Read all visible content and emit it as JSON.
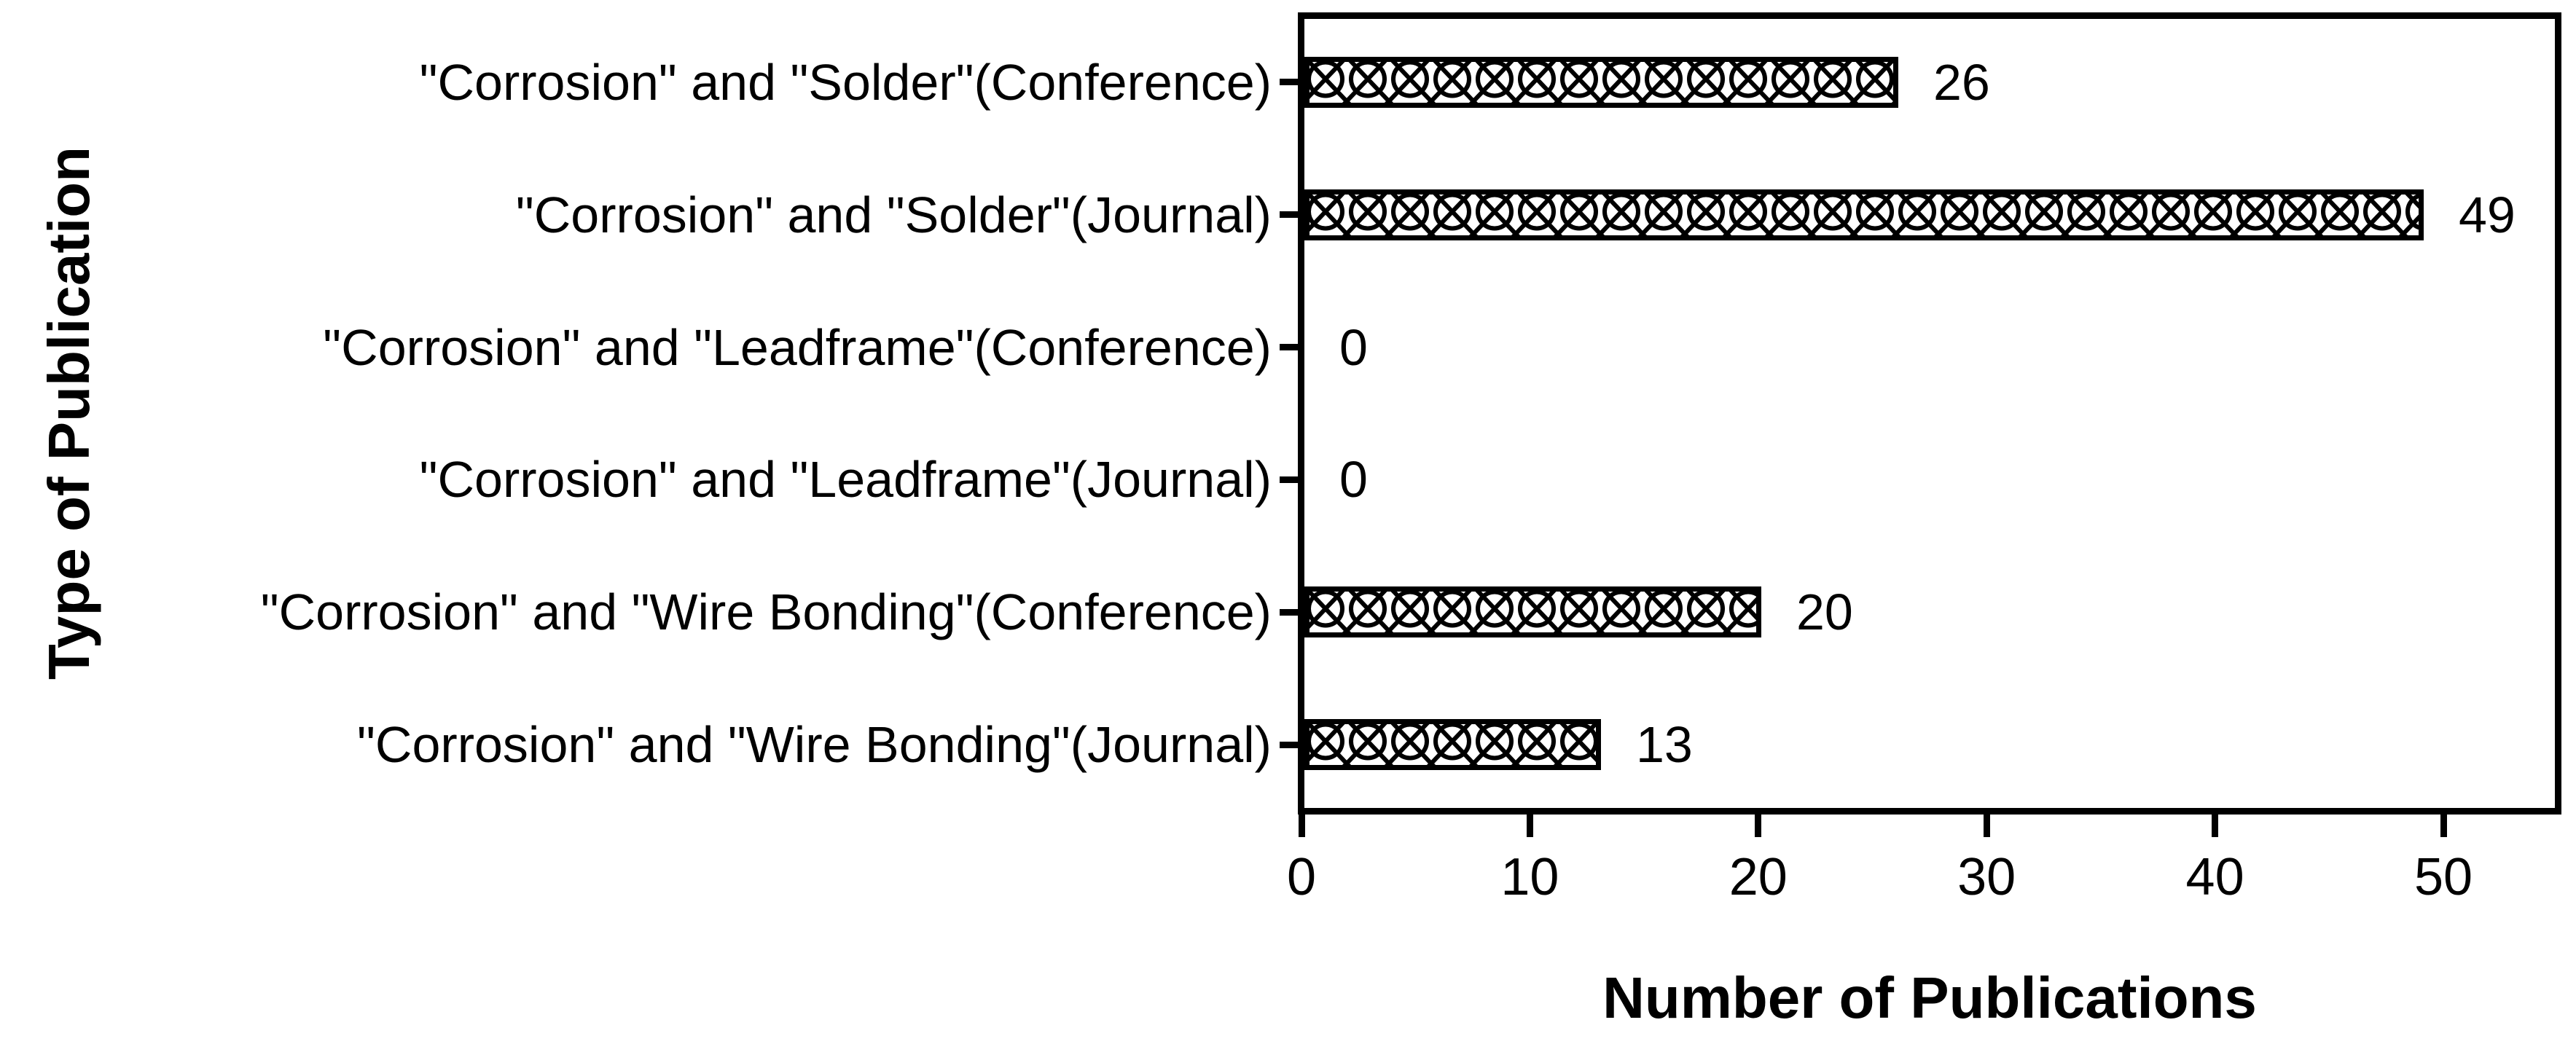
{
  "figure": {
    "background_color": "#ffffff",
    "ink_color": "#000000"
  },
  "chart_data": {
    "type": "bar",
    "orientation": "horizontal",
    "title": "",
    "xlabel": "Number of Publications",
    "ylabel": "Type of Publication",
    "categories": [
      "\"Corrosion\" and \"Solder\"(Conference)",
      "\"Corrosion\" and \"Solder\"(Journal)",
      "\"Corrosion\" and \"Leadframe\"(Conference)",
      "\"Corrosion\" and \"Leadframe\"(Journal)",
      "\"Corrosion\" and \"Wire Bonding\"(Conference)",
      "\"Corrosion\" and \"Wire Bonding\"(Journal)"
    ],
    "values": [
      26,
      49,
      0,
      0,
      20,
      13
    ],
    "value_labels": [
      "26",
      "49",
      "0",
      "0",
      "20",
      "13"
    ],
    "xticks": [
      "0",
      "10",
      "20",
      "30",
      "40",
      "50"
    ],
    "xtick_values": [
      0,
      10,
      20,
      30,
      40,
      50
    ],
    "xlim": [
      0,
      55
    ],
    "grid": false,
    "legend": false,
    "bar_fill": "white-with-black-weave-crosshatch-pattern",
    "bar_border_color": "#000000"
  }
}
